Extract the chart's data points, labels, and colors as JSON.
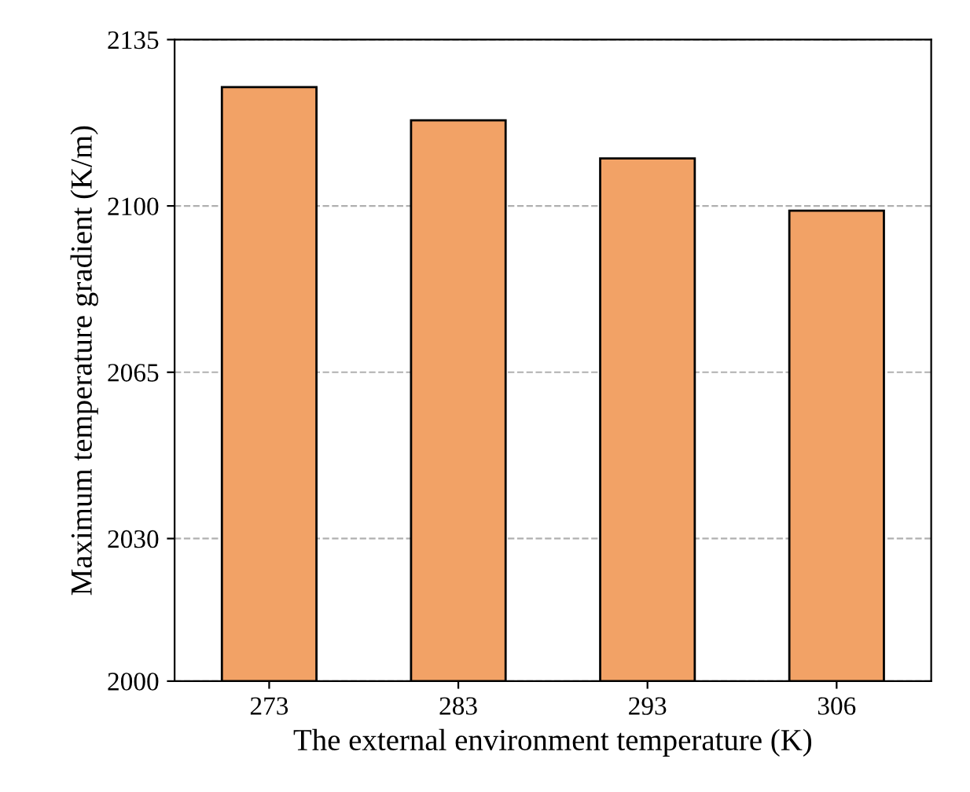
{
  "chart_data": {
    "type": "bar",
    "xlabel": "The external environment temperature (K)",
    "ylabel": "Maximum temperature gradient (K/m)",
    "categories": [
      "273",
      "283",
      "293",
      "306"
    ],
    "values": [
      2125,
      2118,
      2110,
      2099
    ],
    "color": "#f2a266",
    "ylim": [
      2000,
      2135
    ],
    "yticks": [
      2000,
      2030,
      2065,
      2100,
      2135
    ],
    "grid": "y"
  }
}
